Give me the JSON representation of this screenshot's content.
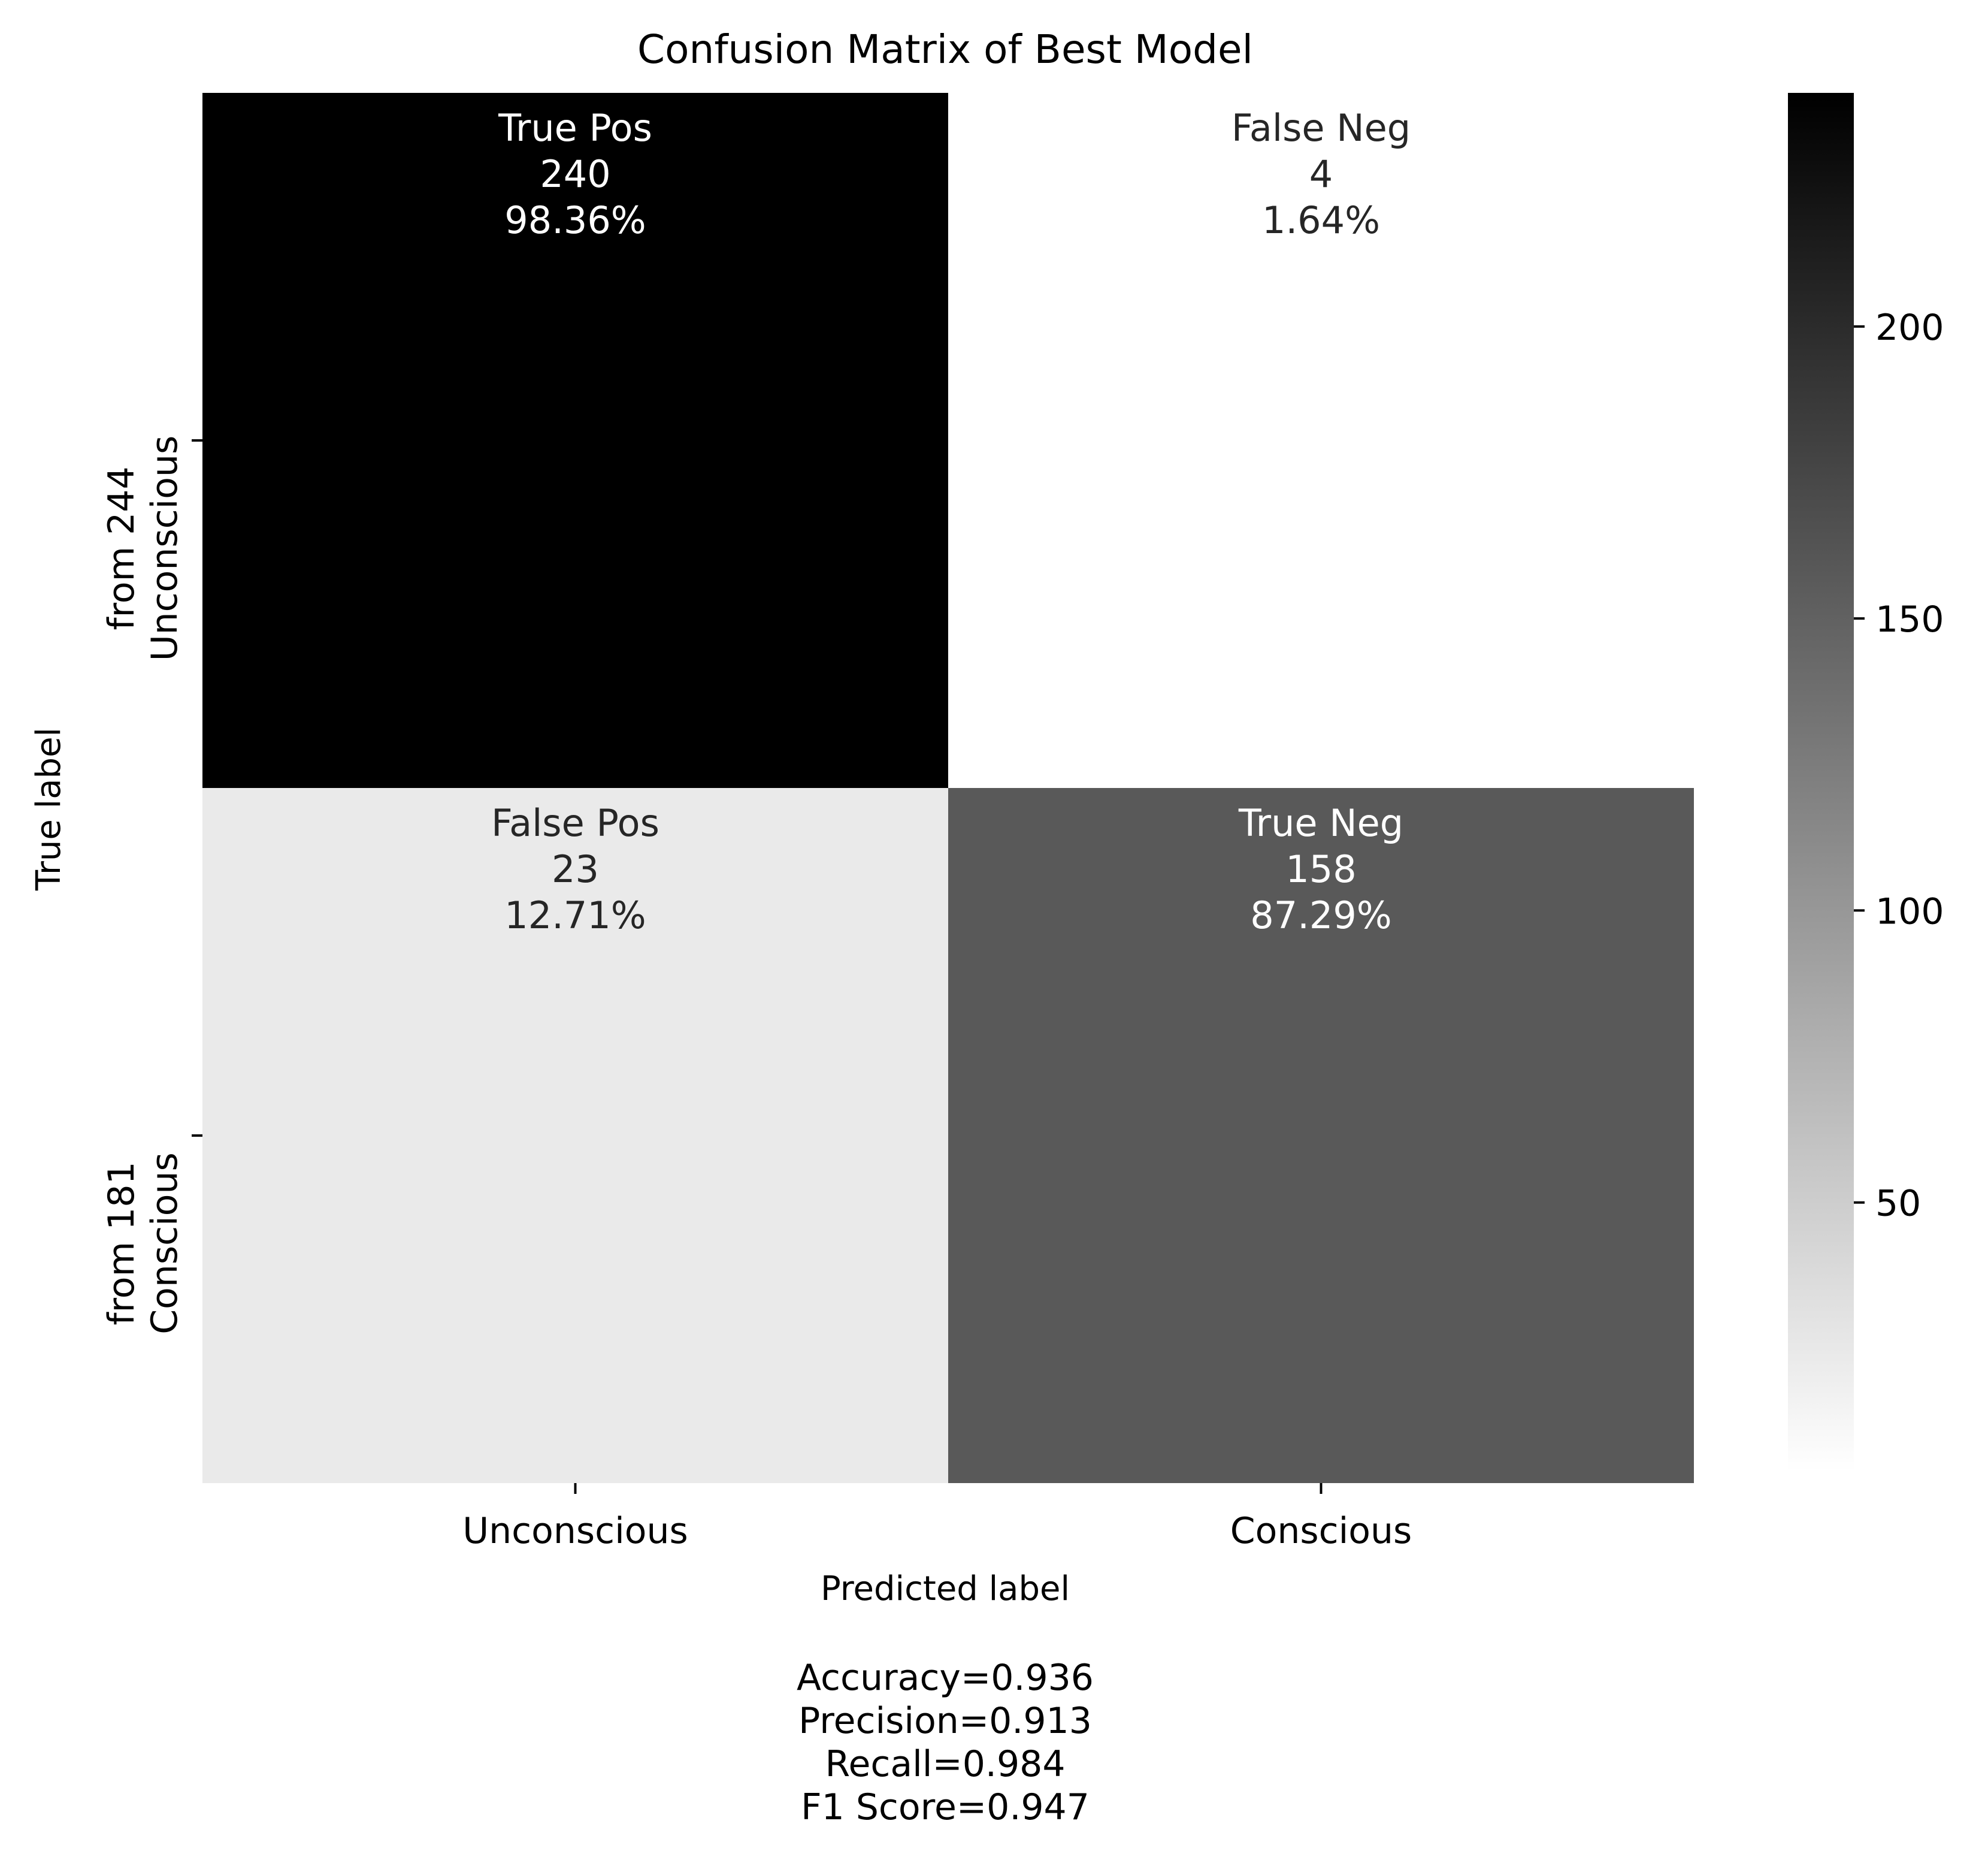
{
  "chart_data": {
    "type": "heatmap",
    "title": "Confusion Matrix of Best Model",
    "xlabel": "Predicted label",
    "ylabel": "True label",
    "x_categories": [
      "Unconscious",
      "Conscious"
    ],
    "y_categories": [
      "Unconscious\nfrom 244",
      "Conscious\nfrom 181"
    ],
    "cells": [
      [
        {
          "label": "True Pos",
          "value": 240,
          "percent": "98.36%"
        },
        {
          "label": "False Neg",
          "value": 4,
          "percent": "1.64%"
        }
      ],
      [
        {
          "label": "False Pos",
          "value": 23,
          "percent": "12.71%"
        },
        {
          "label": "True Neg",
          "value": 158,
          "percent": "87.29%"
        }
      ]
    ],
    "colorbar": {
      "colormap": "Greys",
      "range": [
        4,
        240
      ],
      "ticks": [
        50,
        100,
        150,
        200
      ]
    },
    "metrics": [
      "Accuracy=0.936",
      "Precision=0.913",
      "Recall=0.984",
      "F1 Score=0.947"
    ]
  }
}
